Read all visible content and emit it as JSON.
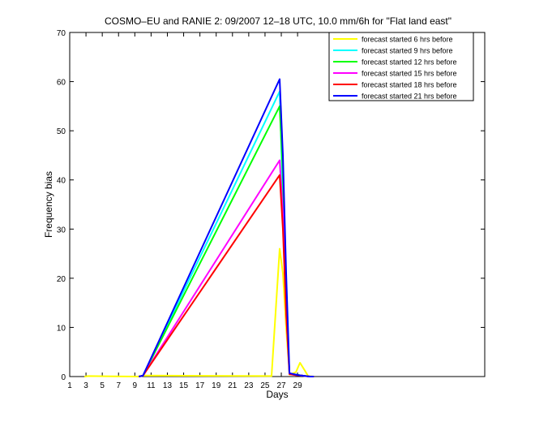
{
  "chart_data": {
    "type": "line",
    "title": "COSMO–EU and RANIE 2: 09/2007 12–18 UTC, 10.0 mm/6h for \"Flat land east\"",
    "xlabel": "Days",
    "ylabel": "Frequency bias",
    "xlim": [
      1,
      52
    ],
    "ylim": [
      0,
      70
    ],
    "xticks": [
      1,
      3,
      5,
      7,
      9,
      11,
      13,
      15,
      17,
      19,
      21,
      23,
      25,
      27,
      29
    ],
    "yticks": [
      0,
      10,
      20,
      30,
      40,
      50,
      60,
      70
    ],
    "grid": false,
    "legend_position": "top-right",
    "series": [
      {
        "name": "forecast started 6 hrs before",
        "color": "#ffff00",
        "points": [
          [
            2.8,
            0
          ],
          [
            3.3,
            0.1
          ],
          [
            9.5,
            0
          ],
          [
            10,
            0.2
          ],
          [
            25.8,
            0.1
          ],
          [
            26.8,
            26
          ],
          [
            27.2,
            21
          ],
          [
            27.6,
            10
          ],
          [
            28,
            0.4
          ],
          [
            28.8,
            0.9
          ],
          [
            29.3,
            2.8
          ],
          [
            29.9,
            1.2
          ],
          [
            30.3,
            0.1
          ],
          [
            31,
            0
          ]
        ]
      },
      {
        "name": "forecast started 9 hrs before",
        "color": "#00ffff",
        "points": [
          [
            9.5,
            0
          ],
          [
            10,
            0.2
          ],
          [
            26.8,
            58
          ],
          [
            27.2,
            36
          ],
          [
            27.6,
            14
          ],
          [
            28,
            0.6
          ],
          [
            28.8,
            0.4
          ],
          [
            29.5,
            0.2
          ],
          [
            30.5,
            0
          ],
          [
            31,
            0
          ]
        ]
      },
      {
        "name": "forecast started 12 hrs before",
        "color": "#00ff00",
        "points": [
          [
            9.5,
            0
          ],
          [
            10,
            0.2
          ],
          [
            26.8,
            55
          ],
          [
            27.2,
            41
          ],
          [
            27.6,
            16
          ],
          [
            28,
            0.5
          ],
          [
            28.8,
            0.4
          ],
          [
            29.5,
            0.2
          ],
          [
            30.5,
            0
          ],
          [
            31,
            0
          ]
        ]
      },
      {
        "name": "forecast started 15 hrs before",
        "color": "#ff00ff",
        "points": [
          [
            9.5,
            0
          ],
          [
            10,
            0.2
          ],
          [
            26.8,
            44
          ],
          [
            27.2,
            33
          ],
          [
            27.6,
            13
          ],
          [
            28,
            0.5
          ],
          [
            28.8,
            0.3
          ],
          [
            29.5,
            0.2
          ],
          [
            30.5,
            0
          ],
          [
            31,
            0
          ]
        ]
      },
      {
        "name": "forecast started 18 hrs before",
        "color": "#ff0000",
        "points": [
          [
            9.5,
            0
          ],
          [
            10,
            0.2
          ],
          [
            26.8,
            41
          ],
          [
            27.2,
            30
          ],
          [
            27.6,
            13
          ],
          [
            28,
            0.5
          ],
          [
            28.8,
            0.3
          ],
          [
            29.5,
            0.2
          ],
          [
            30.5,
            0
          ],
          [
            31,
            0
          ]
        ]
      },
      {
        "name": "forecast started 21 hrs before",
        "color": "#0000ff",
        "points": [
          [
            9.5,
            0
          ],
          [
            10,
            0.2
          ],
          [
            26.8,
            60.5
          ],
          [
            27.2,
            45
          ],
          [
            27.6,
            21
          ],
          [
            28,
            0.7
          ],
          [
            28.8,
            0.4
          ],
          [
            29.5,
            0.2
          ],
          [
            30.5,
            0
          ],
          [
            31,
            0
          ]
        ]
      }
    ]
  }
}
